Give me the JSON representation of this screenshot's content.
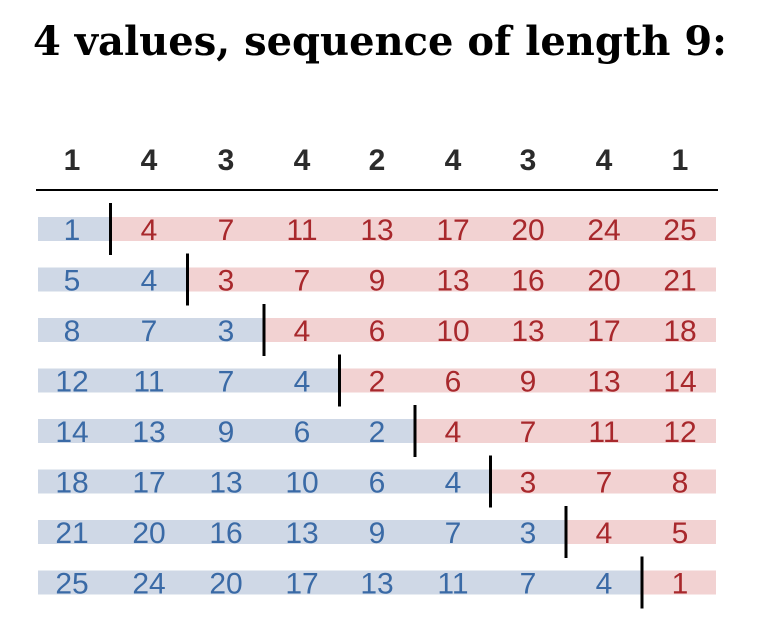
{
  "title": "4 values, sequence of length 9:",
  "sequence": [
    1,
    4,
    3,
    4,
    2,
    4,
    3,
    4,
    1
  ],
  "rows": [
    [
      1,
      4,
      7,
      11,
      13,
      17,
      20,
      24,
      25
    ],
    [
      5,
      4,
      3,
      7,
      9,
      13,
      16,
      20,
      21
    ],
    [
      8,
      7,
      3,
      4,
      6,
      10,
      13,
      17,
      18
    ],
    [
      12,
      11,
      7,
      4,
      2,
      6,
      9,
      13,
      14
    ],
    [
      14,
      13,
      9,
      6,
      2,
      4,
      7,
      11,
      12
    ],
    [
      18,
      17,
      13,
      10,
      6,
      4,
      3,
      7,
      8
    ],
    [
      21,
      20,
      16,
      13,
      9,
      7,
      3,
      4,
      5
    ],
    [
      25,
      24,
      20,
      17,
      13,
      11,
      7,
      4,
      1
    ]
  ],
  "split_after_column": [
    1,
    2,
    3,
    4,
    5,
    6,
    7,
    8
  ],
  "colors": {
    "blue_text": "#3a6aa6",
    "blue_fill": "#cfd8e6",
    "red_text": "#a8282c",
    "red_fill": "#f2d2d2",
    "rule": "#000000"
  }
}
